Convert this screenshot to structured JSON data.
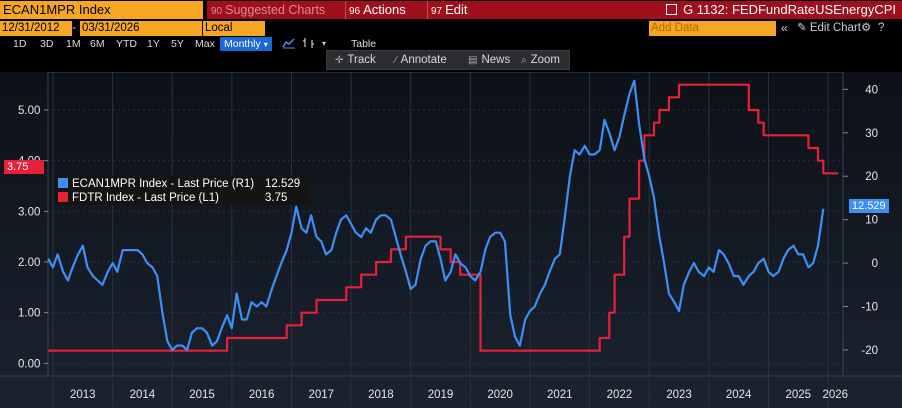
{
  "header": {
    "ticker": "ECAN1MPR Index",
    "suggested_num": "90",
    "suggested_label": "Suggested Charts",
    "actions_num": "96",
    "actions_label": "Actions",
    "edit_num": "97",
    "edit_label": "Edit",
    "dropdown_glyph": "▾",
    "chart_id": "G 1132: FEDFundRateUSEnergyCPI"
  },
  "controls": {
    "start_date": "12/31/2012",
    "end_date": "03/31/2026",
    "currency": "Local CCY",
    "add_data_placeholder": "Add Data",
    "edit_chart": "Edit Chart",
    "collapse_glyph": "«",
    "gear_glyph": "⚙",
    "help_glyph": "?"
  },
  "timeframes": [
    "1D",
    "3D",
    "1M",
    "6M",
    "YTD",
    "1Y",
    "5Y",
    "Max"
  ],
  "period": "Monthly",
  "table_label": "Table",
  "toolbar": {
    "track": "Track",
    "annotate": "Annotate",
    "news": "News",
    "zoom": "Zoom"
  },
  "colors": {
    "ecan": "#3d8ff5",
    "fdtr": "#e8203a",
    "grid": "#2a3240",
    "axis_text": "#e6e6e6"
  },
  "legend": [
    {
      "label": "ECAN1MPR Index - Last Price (R1)",
      "value": "12.529"
    },
    {
      "label": "FDTR Index - Last Price (L1)",
      "value": "3.75"
    }
  ],
  "badges": {
    "left": "3.75",
    "right": "12.529"
  },
  "chart_data": {
    "type": "line",
    "title": "G 1132: FEDFundRateUSEnergyCPI",
    "left_axis": {
      "ticks": [
        "0.00",
        "1.00",
        "2.00",
        "3.00",
        "4.00",
        "5.00"
      ],
      "range": [
        -0.25,
        5.75
      ]
    },
    "right_axis": {
      "ticks": [
        "-20",
        "-10",
        "0",
        "10",
        "20",
        "30",
        "40"
      ],
      "range": [
        -26,
        44
      ]
    },
    "x_axis": {
      "labels": [
        "2013",
        "2014",
        "2015",
        "2016",
        "2017",
        "2018",
        "2019",
        "2020",
        "2021",
        "2022",
        "2023",
        "2024",
        "2025",
        "2026"
      ],
      "range": [
        2012.917,
        2026.25
      ]
    },
    "series": [
      {
        "name": "ECAN1MPR Index - Last Price (R1)",
        "axis": "right",
        "points": [
          [
            2012.92,
            1
          ],
          [
            2013.0,
            -1
          ],
          [
            2013.08,
            2
          ],
          [
            2013.17,
            -2
          ],
          [
            2013.25,
            -4
          ],
          [
            2013.33,
            -1
          ],
          [
            2013.42,
            2
          ],
          [
            2013.5,
            4
          ],
          [
            2013.58,
            -1
          ],
          [
            2013.67,
            -3
          ],
          [
            2013.75,
            -4
          ],
          [
            2013.83,
            -5
          ],
          [
            2013.92,
            -2
          ],
          [
            2014.0,
            0
          ],
          [
            2014.08,
            -2
          ],
          [
            2014.17,
            3
          ],
          [
            2014.25,
            3
          ],
          [
            2014.33,
            3
          ],
          [
            2014.42,
            3
          ],
          [
            2014.5,
            2
          ],
          [
            2014.58,
            0
          ],
          [
            2014.67,
            -1
          ],
          [
            2014.75,
            -3
          ],
          [
            2014.83,
            -11
          ],
          [
            2014.92,
            -18
          ],
          [
            2015.0,
            -20
          ],
          [
            2015.08,
            -19
          ],
          [
            2015.17,
            -19
          ],
          [
            2015.25,
            -20
          ],
          [
            2015.33,
            -16
          ],
          [
            2015.42,
            -15
          ],
          [
            2015.5,
            -15
          ],
          [
            2015.58,
            -16
          ],
          [
            2015.67,
            -19
          ],
          [
            2015.75,
            -18
          ],
          [
            2015.83,
            -15
          ],
          [
            2015.92,
            -12
          ],
          [
            2016.0,
            -15
          ],
          [
            2016.08,
            -7
          ],
          [
            2016.17,
            -13
          ],
          [
            2016.25,
            -13
          ],
          [
            2016.33,
            -9
          ],
          [
            2016.42,
            -10
          ],
          [
            2016.5,
            -9
          ],
          [
            2016.58,
            -10
          ],
          [
            2016.67,
            -6
          ],
          [
            2016.75,
            -3
          ],
          [
            2016.83,
            0
          ],
          [
            2016.92,
            3
          ],
          [
            2017.0,
            7
          ],
          [
            2017.08,
            13
          ],
          [
            2017.17,
            8
          ],
          [
            2017.25,
            7
          ],
          [
            2017.33,
            11
          ],
          [
            2017.42,
            6
          ],
          [
            2017.5,
            5
          ],
          [
            2017.58,
            2
          ],
          [
            2017.67,
            3
          ],
          [
            2017.75,
            7
          ],
          [
            2017.83,
            10
          ],
          [
            2017.92,
            11
          ],
          [
            2018.0,
            9
          ],
          [
            2018.08,
            7
          ],
          [
            2018.17,
            6
          ],
          [
            2018.25,
            8
          ],
          [
            2018.33,
            7
          ],
          [
            2018.42,
            10
          ],
          [
            2018.5,
            11
          ],
          [
            2018.58,
            11
          ],
          [
            2018.67,
            10
          ],
          [
            2018.75,
            6
          ],
          [
            2018.83,
            2
          ],
          [
            2018.92,
            -2
          ],
          [
            2019.0,
            -6
          ],
          [
            2019.08,
            -5
          ],
          [
            2019.17,
            1
          ],
          [
            2019.25,
            4
          ],
          [
            2019.33,
            5
          ],
          [
            2019.42,
            5
          ],
          [
            2019.5,
            1
          ],
          [
            2019.58,
            -4
          ],
          [
            2019.67,
            -2
          ],
          [
            2019.75,
            2
          ],
          [
            2019.83,
            0
          ],
          [
            2019.92,
            -1
          ],
          [
            2020.0,
            -3
          ],
          [
            2020.08,
            -4
          ],
          [
            2020.17,
            -2
          ],
          [
            2020.25,
            3
          ],
          [
            2020.33,
            6
          ],
          [
            2020.42,
            7
          ],
          [
            2020.5,
            7
          ],
          [
            2020.58,
            5
          ],
          [
            2020.67,
            -12
          ],
          [
            2020.75,
            -17
          ],
          [
            2020.83,
            -19
          ],
          [
            2020.92,
            -13
          ],
          [
            2021.0,
            -11
          ],
          [
            2021.08,
            -10
          ],
          [
            2021.17,
            -7
          ],
          [
            2021.25,
            -5
          ],
          [
            2021.33,
            -2
          ],
          [
            2021.42,
            1
          ],
          [
            2021.5,
            2
          ],
          [
            2021.58,
            10
          ],
          [
            2021.67,
            20
          ],
          [
            2021.75,
            26
          ],
          [
            2021.83,
            25
          ],
          [
            2021.92,
            27
          ],
          [
            2022.0,
            25
          ],
          [
            2022.08,
            25
          ],
          [
            2022.17,
            26
          ],
          [
            2022.25,
            33
          ],
          [
            2022.33,
            30
          ],
          [
            2022.42,
            26
          ],
          [
            2022.5,
            29
          ],
          [
            2022.58,
            34
          ],
          [
            2022.67,
            39
          ],
          [
            2022.75,
            42
          ],
          [
            2022.83,
            32
          ],
          [
            2022.92,
            24
          ],
          [
            2023.0,
            20
          ],
          [
            2023.08,
            15
          ],
          [
            2023.17,
            6
          ],
          [
            2023.25,
            0
          ],
          [
            2023.33,
            -7
          ],
          [
            2023.42,
            -9
          ],
          [
            2023.5,
            -11
          ],
          [
            2023.58,
            -5
          ],
          [
            2023.67,
            -2
          ],
          [
            2023.75,
            0
          ],
          [
            2023.83,
            -2
          ],
          [
            2023.92,
            -3
          ],
          [
            2024.0,
            -1
          ],
          [
            2024.08,
            -2
          ],
          [
            2024.17,
            3
          ],
          [
            2024.25,
            2
          ],
          [
            2024.33,
            0
          ],
          [
            2024.42,
            -3
          ],
          [
            2024.5,
            -3
          ],
          [
            2024.58,
            -5
          ],
          [
            2024.67,
            -3
          ],
          [
            2024.75,
            -2
          ],
          [
            2024.83,
            0
          ],
          [
            2024.92,
            1
          ],
          [
            2025.0,
            -2
          ],
          [
            2025.08,
            -3
          ],
          [
            2025.17,
            -2
          ],
          [
            2025.25,
            1
          ],
          [
            2025.33,
            3
          ],
          [
            2025.42,
            4
          ],
          [
            2025.5,
            2
          ],
          [
            2025.58,
            2
          ],
          [
            2025.67,
            -1
          ],
          [
            2025.75,
            0
          ],
          [
            2025.83,
            4
          ],
          [
            2025.92,
            12.529
          ]
        ]
      },
      {
        "name": "FDTR Index - Last Price (L1)",
        "axis": "left",
        "points": [
          [
            2012.92,
            0.25
          ],
          [
            2015.92,
            0.25
          ],
          [
            2015.92,
            0.5
          ],
          [
            2016.92,
            0.5
          ],
          [
            2016.92,
            0.75
          ],
          [
            2017.17,
            0.75
          ],
          [
            2017.17,
            1.0
          ],
          [
            2017.42,
            1.0
          ],
          [
            2017.42,
            1.25
          ],
          [
            2017.92,
            1.25
          ],
          [
            2017.92,
            1.5
          ],
          [
            2018.17,
            1.5
          ],
          [
            2018.17,
            1.75
          ],
          [
            2018.42,
            1.75
          ],
          [
            2018.42,
            2.0
          ],
          [
            2018.67,
            2.0
          ],
          [
            2018.67,
            2.25
          ],
          [
            2018.92,
            2.25
          ],
          [
            2018.92,
            2.5
          ],
          [
            2019.5,
            2.5
          ],
          [
            2019.5,
            2.25
          ],
          [
            2019.67,
            2.25
          ],
          [
            2019.67,
            2.0
          ],
          [
            2019.83,
            2.0
          ],
          [
            2019.83,
            1.75
          ],
          [
            2020.17,
            1.75
          ],
          [
            2020.17,
            0.25
          ],
          [
            2022.17,
            0.25
          ],
          [
            2022.17,
            0.5
          ],
          [
            2022.33,
            0.5
          ],
          [
            2022.33,
            1.0
          ],
          [
            2022.42,
            1.0
          ],
          [
            2022.42,
            1.75
          ],
          [
            2022.58,
            1.75
          ],
          [
            2022.58,
            2.5
          ],
          [
            2022.67,
            2.5
          ],
          [
            2022.67,
            3.25
          ],
          [
            2022.83,
            3.25
          ],
          [
            2022.83,
            4.0
          ],
          [
            2022.92,
            4.0
          ],
          [
            2022.92,
            4.5
          ],
          [
            2023.08,
            4.5
          ],
          [
            2023.08,
            4.75
          ],
          [
            2023.17,
            4.75
          ],
          [
            2023.17,
            5.0
          ],
          [
            2023.33,
            5.0
          ],
          [
            2023.33,
            5.25
          ],
          [
            2023.5,
            5.25
          ],
          [
            2023.5,
            5.5
          ],
          [
            2024.67,
            5.5
          ],
          [
            2024.67,
            5.0
          ],
          [
            2024.83,
            5.0
          ],
          [
            2024.83,
            4.75
          ],
          [
            2024.92,
            4.75
          ],
          [
            2024.92,
            4.5
          ],
          [
            2025.67,
            4.5
          ],
          [
            2025.67,
            4.25
          ],
          [
            2025.83,
            4.25
          ],
          [
            2025.83,
            4.0
          ],
          [
            2025.92,
            4.0
          ],
          [
            2025.92,
            3.75
          ],
          [
            2026.17,
            3.75
          ]
        ]
      }
    ]
  }
}
